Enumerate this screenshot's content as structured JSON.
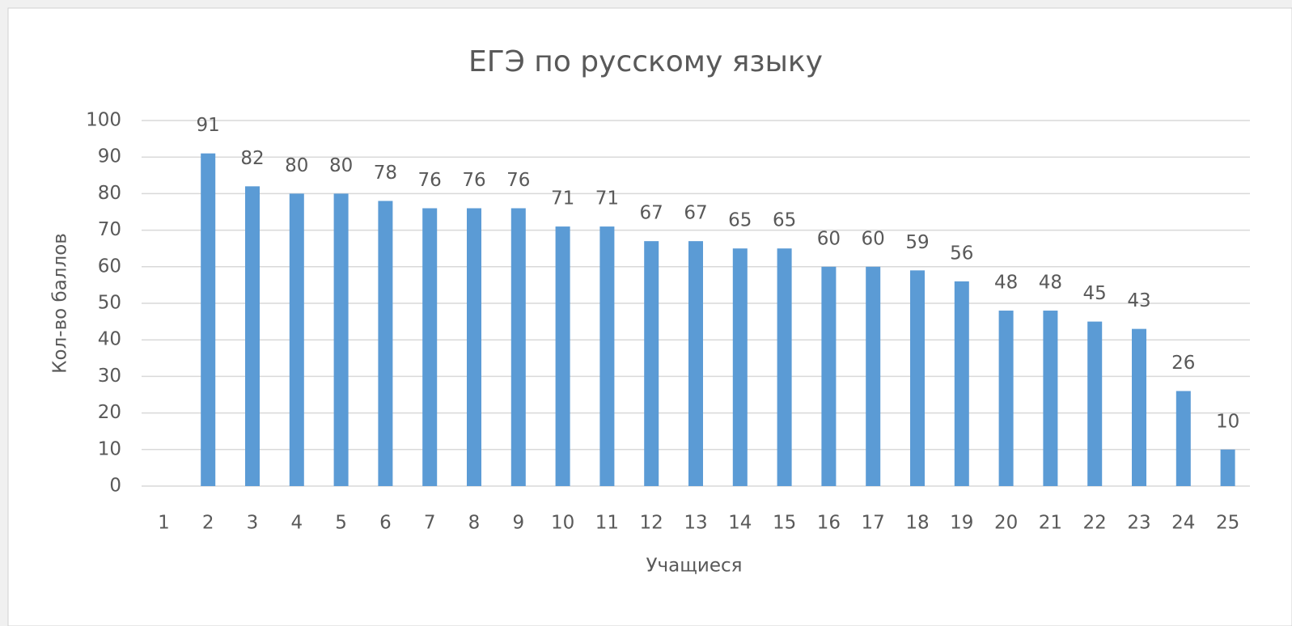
{
  "chart_data": {
    "type": "bar",
    "title": "ЕГЭ по русскому языку",
    "x_label": "Учащиеся",
    "y_label": "Кол-во баллов",
    "categories": [
      "1",
      "2",
      "3",
      "4",
      "5",
      "6",
      "7",
      "8",
      "9",
      "10",
      "11",
      "12",
      "13",
      "14",
      "15",
      "16",
      "17",
      "18",
      "19",
      "20",
      "21",
      "22",
      "23",
      "24",
      "25"
    ],
    "values": [
      null,
      91,
      82,
      80,
      80,
      78,
      76,
      76,
      76,
      71,
      71,
      67,
      67,
      65,
      65,
      60,
      60,
      59,
      56,
      48,
      48,
      45,
      43,
      26,
      10
    ],
    "color": "#5b9bd5",
    "ylim": [
      0,
      100
    ],
    "yticks": [
      0,
      10,
      20,
      30,
      40,
      50,
      60,
      70,
      80,
      90,
      100
    ],
    "grid": true
  }
}
